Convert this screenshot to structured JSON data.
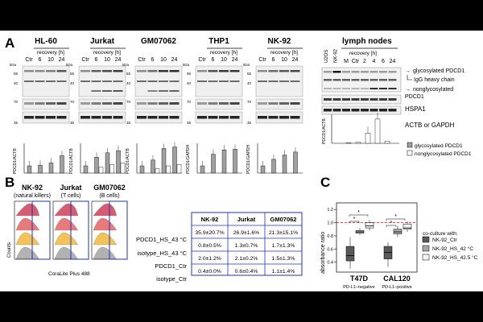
{
  "panels": {
    "A": "A",
    "B": "B",
    "C": "C"
  },
  "panelA": {
    "blots": [
      {
        "title": "HL-60",
        "ylabel": "PDCD1/ACTB",
        "lanes": [
          "Ctr",
          "6",
          "10",
          "24"
        ],
        "header": "recovery [h]"
      },
      {
        "title": "Jurkat",
        "ylabel": "PDCD1/ACTB",
        "lanes": [
          "Ctr",
          "6",
          "10",
          "24"
        ],
        "header": "recovery [h]"
      },
      {
        "title": "GM07062",
        "ylabel": "PDCD1/ACTB",
        "lanes": [
          "Ctr",
          "6",
          "10",
          "24"
        ],
        "header": ""
      },
      {
        "title": "THP1",
        "ylabel": "PDCD1/GAPDH",
        "lanes": [
          "Ctr",
          "6",
          "10",
          "24"
        ],
        "header": "recovery [h]"
      },
      {
        "title": "NK-92",
        "ylabel": "PDCD1/GAPDH",
        "lanes": [
          "Ctr",
          "6",
          "10",
          "24"
        ],
        "header": "recovery [h]"
      }
    ],
    "kda": "kDa",
    "markers": {
      "m55": "55",
      "m40": "40",
      "m70": "70",
      "m35": "35"
    },
    "lymph": {
      "title": "lymph nodes",
      "header": "recovery [h]",
      "lanes": [
        "U2OS",
        "NK-92",
        "M",
        "Ctr",
        "2",
        "4",
        "6",
        "24"
      ],
      "ylabel": "PDCD1/ACTB"
    },
    "band_labels": {
      "glyco": "glycosylated PDCD1",
      "igg": "IgG heavy chain",
      "nonglyco1": "nonglycosylated",
      "nonglyco2": "PDCD1",
      "hspa1": "HSPA1",
      "actb": "ACTB or GAPDH"
    },
    "legend": {
      "glyco": "glycosylated PDCD1",
      "nonglyco": "nonglycosylated PDCD1"
    }
  },
  "panelB": {
    "groups": [
      {
        "name": "NK-92",
        "sub": "(natural killers)"
      },
      {
        "name": "Jurkat",
        "sub": "(T cells)"
      },
      {
        "name": "GM07062",
        "sub": "(B cells)"
      }
    ],
    "ylabel": "Counts",
    "xlabel": "CoraLite Plus 488",
    "table": {
      "columns": [
        "NK-92",
        "Jurkat",
        "GM07062"
      ],
      "rows": [
        {
          "label": "PDCD1_HS_43 °C",
          "values": [
            "35.9±20.7%",
            "26.9±1.6%",
            "21.3±15.1%"
          ]
        },
        {
          "label": "isotype_HS_43 °C",
          "values": [
            "0.8±0.5%",
            "1.3±0.7%",
            "1.7±1.3%"
          ]
        },
        {
          "label": "PDCD1_Ctr",
          "values": [
            "2.0±1.2%",
            "2.1±0.2%",
            "1.5±1.3%"
          ]
        },
        {
          "label": "isotype_Ctr",
          "values": [
            "0.4±0.0%",
            "0.6±0.4%",
            "1.1±1.4%"
          ]
        }
      ]
    }
  },
  "panelC": {
    "ylabel": "absorbance ratio",
    "yticks": [
      "1.2",
      "1.0",
      "0.8",
      "0.6",
      "0.4"
    ],
    "groups": [
      {
        "name": "T47D",
        "sub": "PD-L1–negative"
      },
      {
        "name": "CAL120",
        "sub": "PD-L1–positive"
      }
    ],
    "legend_title": "co-culture with:",
    "legend": [
      "NK-92_Ctr",
      "NK-92_HS_42 °C",
      "NK-92_HS_42.5 °C"
    ],
    "sig": "*",
    "colors": {
      "ctr": "#595959",
      "hs42": "#a6a6a6",
      "hs425": "#f2f2f2",
      "ref": "#e03030"
    }
  },
  "chart_data": [
    {
      "type": "bar",
      "title": "",
      "categories": [
        "HL-60 Ctr",
        "HL-60 6",
        "HL-60 10",
        "HL-60 24",
        "Jurkat Ctr",
        "Jurkat 6",
        "Jurkat 10",
        "Jurkat 24",
        "GM07062 Ctr",
        "GM07062 6",
        "GM07062 10",
        "GM07062 24",
        "THP1 Ctr",
        "THP1 6",
        "THP1 10",
        "THP1 24",
        "NK-92 Ctr",
        "NK-92 6",
        "NK-92 10",
        "NK-92 24",
        "lymph nodes Ctr",
        "lymph nodes 2",
        "lymph nodes 4",
        "lymph nodes 6",
        "lymph nodes 24"
      ],
      "series": [
        {
          "name": "glycosylated PDCD1",
          "values": [
            1.0,
            1.1,
            1.4,
            2.4,
            1.0,
            2.2,
            2.8,
            3.1,
            1.0,
            1.8,
            3.4,
            3.6,
            1.0,
            2.6,
            3.2,
            3.3,
            1.0,
            1.9,
            2.5,
            2.9,
            0.0,
            0.0,
            0.0,
            0.0,
            0.0
          ]
        },
        {
          "name": "nonglycosylated PDCD1",
          "values": [
            0,
            0,
            0,
            0,
            0,
            0.8,
            1.2,
            1.4,
            0,
            0.6,
            1.0,
            1.2,
            0,
            0,
            0,
            0,
            0,
            0,
            0,
            0,
            0.1,
            0.2,
            1.8,
            4.3,
            0.4
          ]
        }
      ]
    },
    {
      "type": "box",
      "title": "",
      "ylabel": "absorbance ratio",
      "ylim": [
        0.25,
        1.3
      ],
      "categories": [
        "T47D",
        "CAL120"
      ],
      "series": [
        {
          "name": "NK-92_Ctr",
          "values": [
            {
              "min": 0.3,
              "q1": 0.42,
              "median": 0.5,
              "q3": 0.64,
              "max": 0.78
            },
            {
              "min": 0.33,
              "q1": 0.45,
              "median": 0.55,
              "q3": 0.64,
              "max": 0.7
            }
          ]
        },
        {
          "name": "NK-92_HS_42 °C",
          "values": [
            {
              "min": 0.81,
              "q1": 0.84,
              "median": 0.86,
              "q3": 0.88,
              "max": 0.92
            },
            {
              "min": 0.78,
              "q1": 0.83,
              "median": 0.86,
              "q3": 0.9,
              "max": 0.95
            }
          ]
        },
        {
          "name": "NK-92_HS_42.5 °C",
          "values": [
            {
              "min": 0.88,
              "q1": 0.92,
              "median": 0.95,
              "q3": 1.0,
              "max": 1.04
            },
            {
              "min": 0.86,
              "q1": 0.9,
              "median": 0.92,
              "q3": 0.98,
              "max": 1.02
            }
          ]
        }
      ]
    }
  ]
}
